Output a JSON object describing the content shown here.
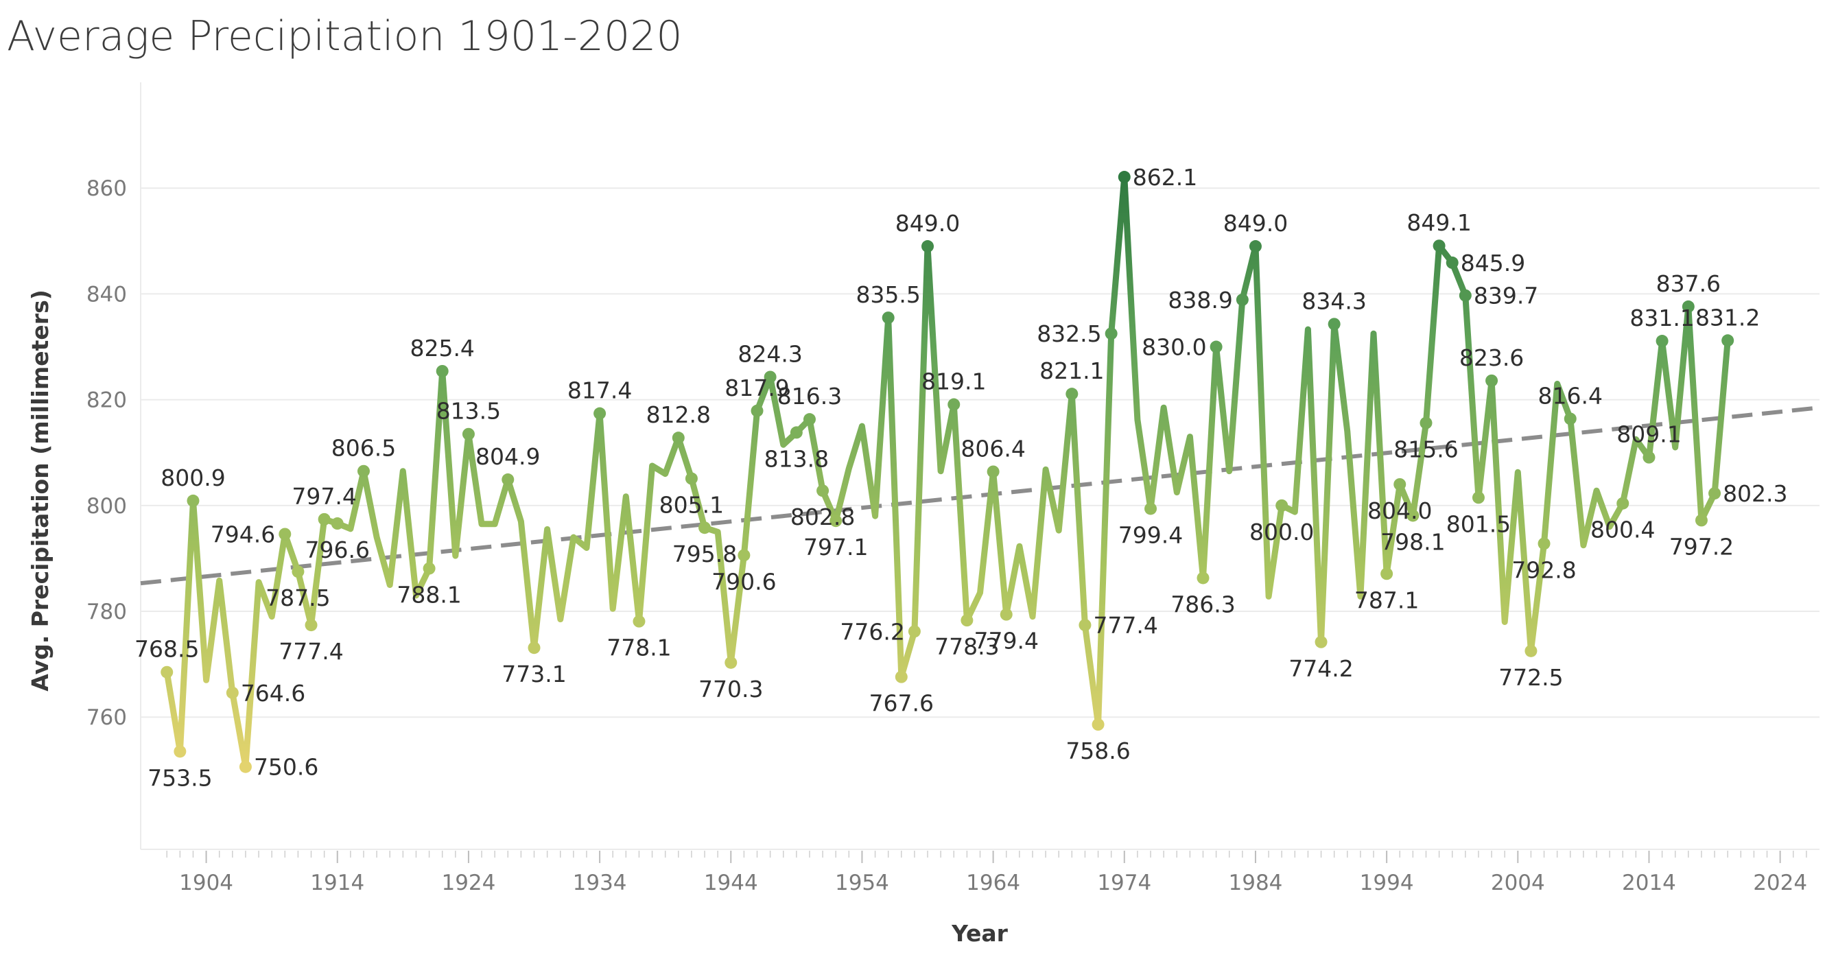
{
  "chart_data": {
    "type": "line",
    "title": "Average Precipitation 1901-2020",
    "xlabel": "Year",
    "ylabel": "Avg. Precipitation (millimeters)",
    "xlim": [
      1899,
      2027
    ],
    "ylim": [
      735,
      880
    ],
    "x_ticks": [
      1904,
      1914,
      1924,
      1934,
      1944,
      1954,
      1964,
      1974,
      1984,
      1994,
      2004,
      2014,
      2024
    ],
    "y_ticks": [
      760,
      780,
      800,
      820,
      840,
      860
    ],
    "grid": true,
    "legend": "none",
    "color_scale": [
      "#f2d772",
      "#a9c45e",
      "#5fa257",
      "#1d6b38"
    ],
    "trendline": {
      "style": "dashed",
      "color": "#8c8c8c",
      "start": [
        1899,
        785.3
      ],
      "end": [
        2027,
        818.5
      ]
    },
    "series": [
      {
        "x": [
          1901,
          1902,
          1903,
          1904,
          1905,
          1906,
          1907,
          1908,
          1909,
          1910,
          1911,
          1912,
          1913,
          1914,
          1915,
          1916,
          1917,
          1918,
          1919,
          1920,
          1921,
          1922,
          1923,
          1924,
          1925,
          1926,
          1927,
          1928,
          1929,
          1930,
          1931,
          1932,
          1933,
          1934,
          1935,
          1936,
          1937,
          1938,
          1939,
          1940,
          1941,
          1942,
          1943,
          1944,
          1945,
          1946,
          1947,
          1948,
          1949,
          1950,
          1951,
          1952,
          1953,
          1954,
          1955,
          1956,
          1957,
          1958,
          1959,
          1960,
          1961,
          1962,
          1963,
          1964,
          1965,
          1966,
          1967,
          1968,
          1969,
          1970,
          1971,
          1972,
          1973,
          1974,
          1975,
          1976,
          1977,
          1978,
          1979,
          1980,
          1981,
          1982,
          1983,
          1984,
          1985,
          1986,
          1987,
          1988,
          1989,
          1990,
          1991,
          1992,
          1993,
          1994,
          1995,
          1996,
          1997,
          1998,
          1999,
          2000,
          2001,
          2002,
          2003,
          2004,
          2005,
          2006,
          2007,
          2008,
          2009,
          2010,
          2011,
          2012,
          2013,
          2014,
          2015,
          2016,
          2017,
          2018,
          2019,
          2020
        ],
        "values": [
          768.5,
          753.5,
          800.9,
          767.0,
          785.8,
          764.6,
          750.6,
          785.5,
          779.0,
          794.6,
          787.5,
          777.4,
          797.4,
          796.6,
          795.6,
          806.5,
          794.0,
          785.0,
          806.5,
          783.0,
          788.1,
          825.4,
          790.5,
          813.5,
          796.5,
          796.5,
          804.9,
          797.0,
          773.1,
          795.5,
          778.5,
          794.0,
          792.0,
          817.4,
          780.5,
          801.7,
          778.1,
          807.5,
          806.0,
          812.8,
          805.1,
          795.8,
          795.0,
          770.3,
          790.6,
          817.9,
          824.3,
          811.5,
          813.8,
          816.3,
          802.8,
          797.1,
          807.0,
          815.0,
          798.0,
          835.5,
          767.6,
          776.2,
          849.0,
          806.5,
          819.1,
          778.3,
          783.5,
          806.4,
          779.4,
          792.3,
          779.0,
          806.8,
          795.3,
          821.1,
          777.4,
          758.6,
          832.5,
          862.1,
          816.2,
          799.4,
          818.5,
          802.5,
          813.0,
          786.3,
          830.0,
          806.5,
          838.9,
          849.0,
          782.8,
          800.0,
          798.8,
          833.3,
          774.2,
          834.3,
          814.0,
          782.8,
          832.5,
          787.1,
          804.0,
          798.1,
          815.6,
          849.1,
          845.9,
          839.7,
          801.5,
          823.6,
          778.0,
          806.3,
          772.5,
          792.8,
          823.0,
          816.4,
          792.5,
          802.8,
          796.0,
          800.4,
          812.5,
          809.1,
          831.1,
          811.0,
          837.6,
          797.2,
          802.3,
          831.2
        ],
        "labels": [
          {
            "x": 1901,
            "y": 768.5,
            "text": "768.5"
          },
          {
            "x": 1902,
            "y": 753.5,
            "text": "753.5"
          },
          {
            "x": 1903,
            "y": 800.9,
            "text": "800.9"
          },
          {
            "x": 1906,
            "y": 764.6,
            "text": "764.6"
          },
          {
            "x": 1907,
            "y": 750.6,
            "text": "750.6"
          },
          {
            "x": 1910,
            "y": 794.6,
            "text": "794.6"
          },
          {
            "x": 1911,
            "y": 787.5,
            "text": "787.5"
          },
          {
            "x": 1912,
            "y": 777.4,
            "text": "777.4"
          },
          {
            "x": 1913,
            "y": 797.4,
            "text": "797.4"
          },
          {
            "x": 1914,
            "y": 796.6,
            "text": "796.6"
          },
          {
            "x": 1916,
            "y": 806.5,
            "text": "806.5"
          },
          {
            "x": 1921,
            "y": 788.1,
            "text": "788.1"
          },
          {
            "x": 1922,
            "y": 825.4,
            "text": "825.4"
          },
          {
            "x": 1924,
            "y": 813.5,
            "text": "813.5"
          },
          {
            "x": 1927,
            "y": 804.9,
            "text": "804.9"
          },
          {
            "x": 1929,
            "y": 773.1,
            "text": "773.1"
          },
          {
            "x": 1934,
            "y": 817.4,
            "text": "817.4"
          },
          {
            "x": 1937,
            "y": 778.1,
            "text": "778.1"
          },
          {
            "x": 1940,
            "y": 812.8,
            "text": "812.8"
          },
          {
            "x": 1941,
            "y": 805.1,
            "text": "805.1"
          },
          {
            "x": 1942,
            "y": 795.8,
            "text": "795.8"
          },
          {
            "x": 1944,
            "y": 770.3,
            "text": "770.3"
          },
          {
            "x": 1945,
            "y": 790.6,
            "text": "790.6"
          },
          {
            "x": 1946,
            "y": 817.9,
            "text": "817.9"
          },
          {
            "x": 1947,
            "y": 824.3,
            "text": "824.3"
          },
          {
            "x": 1949,
            "y": 813.8,
            "text": "813.8"
          },
          {
            "x": 1950,
            "y": 816.3,
            "text": "816.3"
          },
          {
            "x": 1951,
            "y": 802.8,
            "text": "802.8"
          },
          {
            "x": 1952,
            "y": 797.1,
            "text": "797.1"
          },
          {
            "x": 1956,
            "y": 835.5,
            "text": "835.5"
          },
          {
            "x": 1957,
            "y": 767.6,
            "text": "767.6"
          },
          {
            "x": 1958,
            "y": 776.2,
            "text": "776.2"
          },
          {
            "x": 1959,
            "y": 849.0,
            "text": "849.0"
          },
          {
            "x": 1961,
            "y": 819.1,
            "text": "819.1"
          },
          {
            "x": 1962,
            "y": 778.3,
            "text": "778.3"
          },
          {
            "x": 1964,
            "y": 806.4,
            "text": "806.4"
          },
          {
            "x": 1965,
            "y": 779.4,
            "text": "779.4"
          },
          {
            "x": 1970,
            "y": 821.1,
            "text": "821.1"
          },
          {
            "x": 1971,
            "y": 777.4,
            "text": "777.4"
          },
          {
            "x": 1972,
            "y": 758.6,
            "text": "758.6"
          },
          {
            "x": 1973,
            "y": 832.5,
            "text": "832.5"
          },
          {
            "x": 1974,
            "y": 862.1,
            "text": "862.1"
          },
          {
            "x": 1976,
            "y": 799.4,
            "text": "799.4"
          },
          {
            "x": 1980,
            "y": 786.3,
            "text": "786.3"
          },
          {
            "x": 1981,
            "y": 830.0,
            "text": "830.0"
          },
          {
            "x": 1983,
            "y": 838.9,
            "text": "838.9"
          },
          {
            "x": 1984,
            "y": 849.0,
            "text": "849.0"
          },
          {
            "x": 1986,
            "y": 800.0,
            "text": "800.0"
          },
          {
            "x": 1989,
            "y": 774.2,
            "text": "774.2"
          },
          {
            "x": 1990,
            "y": 834.3,
            "text": "834.3"
          },
          {
            "x": 1994,
            "y": 787.1,
            "text": "787.1"
          },
          {
            "x": 1995,
            "y": 804.0,
            "text": "804.0"
          },
          {
            "x": 1996,
            "y": 798.1,
            "text": "798.1"
          },
          {
            "x": 1997,
            "y": 815.6,
            "text": "815.6"
          },
          {
            "x": 1998,
            "y": 849.1,
            "text": "849.1"
          },
          {
            "x": 1999,
            "y": 845.9,
            "text": "845.9"
          },
          {
            "x": 2000,
            "y": 839.7,
            "text": "839.7"
          },
          {
            "x": 2001,
            "y": 801.5,
            "text": "801.5"
          },
          {
            "x": 2002,
            "y": 823.6,
            "text": "823.6"
          },
          {
            "x": 2005,
            "y": 772.5,
            "text": "772.5"
          },
          {
            "x": 2006,
            "y": 792.8,
            "text": "792.8"
          },
          {
            "x": 2008,
            "y": 816.4,
            "text": "816.4"
          },
          {
            "x": 2012,
            "y": 800.4,
            "text": "800.4"
          },
          {
            "x": 2014,
            "y": 809.1,
            "text": "809.1"
          },
          {
            "x": 2015,
            "y": 831.1,
            "text": "831.1"
          },
          {
            "x": 2017,
            "y": 837.6,
            "text": "837.6"
          },
          {
            "x": 2018,
            "y": 797.2,
            "text": "797.2"
          },
          {
            "x": 2019,
            "y": 802.3,
            "text": "802.3"
          },
          {
            "x": 2020,
            "y": 831.2,
            "text": "831.2"
          }
        ]
      }
    ]
  }
}
